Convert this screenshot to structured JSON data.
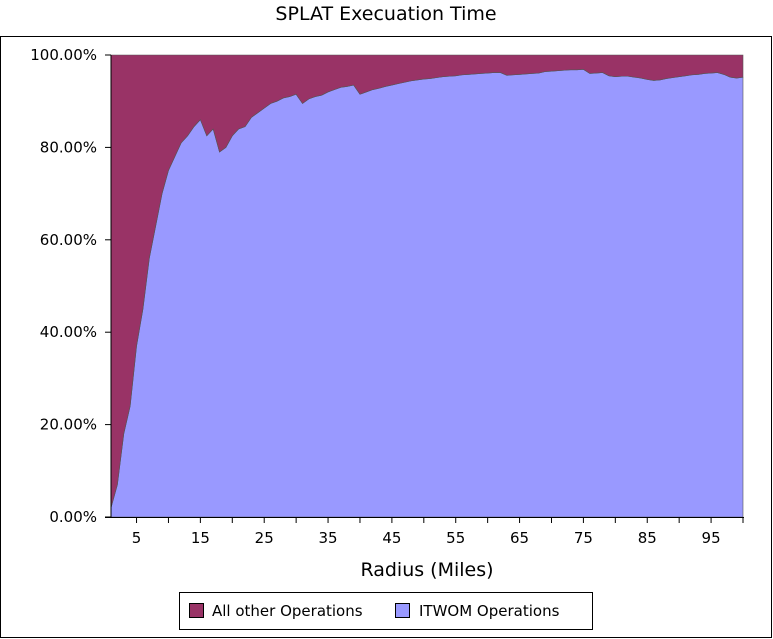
{
  "chart_data": {
    "type": "area",
    "stacked": true,
    "percent": true,
    "title": "SPLAT Execuation Time",
    "xlabel": "Radius (Miles)",
    "ylabel": "",
    "x_ticks": [
      "5",
      "15",
      "25",
      "35",
      "45",
      "55",
      "65",
      "75",
      "85",
      "95"
    ],
    "y_ticks": [
      "0.00%",
      "20.00%",
      "40.00%",
      "60.00%",
      "80.00%",
      "100.00%"
    ],
    "xlim": [
      1,
      100
    ],
    "ylim": [
      0,
      100
    ],
    "grid": false,
    "legend_position": "bottom",
    "x": [
      1,
      2,
      3,
      4,
      5,
      6,
      7,
      8,
      9,
      10,
      11,
      12,
      13,
      14,
      15,
      16,
      17,
      18,
      19,
      20,
      21,
      22,
      23,
      24,
      25,
      26,
      27,
      28,
      29,
      30,
      31,
      32,
      33,
      34,
      35,
      36,
      37,
      38,
      39,
      40,
      41,
      42,
      43,
      44,
      45,
      46,
      47,
      48,
      49,
      50,
      51,
      52,
      53,
      54,
      55,
      56,
      57,
      58,
      59,
      60,
      61,
      62,
      63,
      64,
      65,
      66,
      67,
      68,
      69,
      70,
      71,
      72,
      73,
      74,
      75,
      76,
      77,
      78,
      79,
      80,
      81,
      82,
      83,
      84,
      85,
      86,
      87,
      88,
      89,
      90,
      91,
      92,
      93,
      94,
      95,
      96,
      97,
      98,
      99,
      100
    ],
    "series": [
      {
        "name": "All other Operations",
        "color": "#993366",
        "values": [
          98,
          93,
          82,
          76,
          63,
          55,
          44,
          37,
          30,
          25,
          22,
          19,
          17.5,
          15.5,
          14,
          17.5,
          16,
          21,
          20,
          17.5,
          16,
          15.5,
          13.5,
          12.5,
          11.5,
          10.5,
          10,
          9.3,
          9,
          8.5,
          10.5,
          9.5,
          9,
          8.7,
          8,
          7.5,
          7,
          6.8,
          6.5,
          8.5,
          8,
          7.5,
          7.2,
          6.8,
          6.5,
          6.2,
          5.9,
          5.6,
          5.4,
          5.2,
          5.1,
          4.9,
          4.7,
          4.6,
          4.5,
          4.3,
          4.2,
          4.1,
          4,
          3.9,
          3.8,
          3.8,
          4.4,
          4.3,
          4.2,
          4.1,
          4,
          3.9,
          3.6,
          3.5,
          3.4,
          3.3,
          3.2,
          3.2,
          3.1,
          4,
          3.9,
          3.8,
          4.5,
          4.7,
          4.6,
          4.6,
          4.8,
          5,
          5.3,
          5.5,
          5.4,
          5.1,
          4.9,
          4.7,
          4.5,
          4.3,
          4.2,
          4,
          3.9,
          3.8,
          4.2,
          4.8,
          5,
          4.8
        ]
      },
      {
        "name": "ITWOM Operations",
        "color": "#9999ff",
        "values": [
          2,
          7,
          18,
          24,
          37,
          45,
          56,
          63,
          70,
          75,
          78,
          81,
          82.5,
          84.5,
          86,
          82.5,
          84,
          79,
          80,
          82.5,
          84,
          84.5,
          86.5,
          87.5,
          88.5,
          89.5,
          90,
          90.7,
          91,
          91.5,
          89.5,
          90.5,
          91,
          91.3,
          92,
          92.5,
          93,
          93.2,
          93.5,
          91.5,
          92,
          92.5,
          92.8,
          93.2,
          93.5,
          93.8,
          94.1,
          94.4,
          94.6,
          94.8,
          94.9,
          95.1,
          95.3,
          95.4,
          95.5,
          95.7,
          95.8,
          95.9,
          96,
          96.1,
          96.2,
          96.2,
          95.6,
          95.7,
          95.8,
          95.9,
          96,
          96.1,
          96.4,
          96.5,
          96.6,
          96.7,
          96.8,
          96.8,
          96.9,
          96,
          96.1,
          96.2,
          95.5,
          95.3,
          95.4,
          95.4,
          95.2,
          95,
          94.7,
          94.5,
          94.6,
          94.9,
          95.1,
          95.3,
          95.5,
          95.7,
          95.8,
          96,
          96.1,
          96.2,
          95.8,
          95.2,
          95,
          95.2
        ]
      }
    ]
  }
}
